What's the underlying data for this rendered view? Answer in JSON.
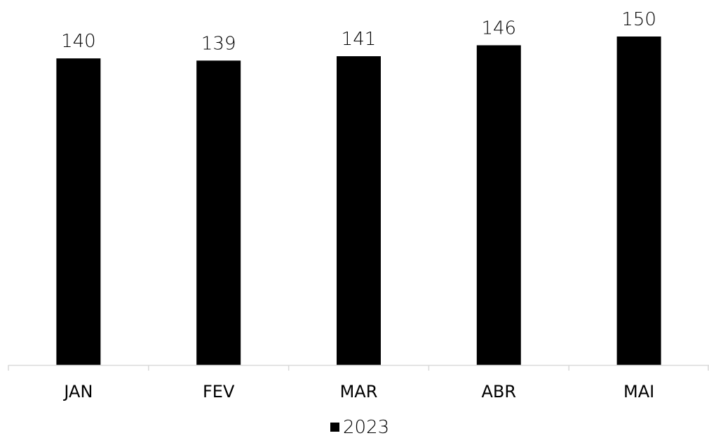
{
  "chart_data": {
    "type": "bar",
    "categories": [
      "JAN",
      "FEV",
      "MAR",
      "ABR",
      "MAI"
    ],
    "series": [
      {
        "name": "2023",
        "values": [
          140,
          139,
          141,
          146,
          150
        ],
        "color": "#000000"
      }
    ],
    "title": "",
    "xlabel": "",
    "ylabel": "",
    "ylim": [
      0,
      150
    ],
    "grid": false,
    "y_axis_visible": false,
    "data_labels": true,
    "legend_position": "bottom"
  }
}
